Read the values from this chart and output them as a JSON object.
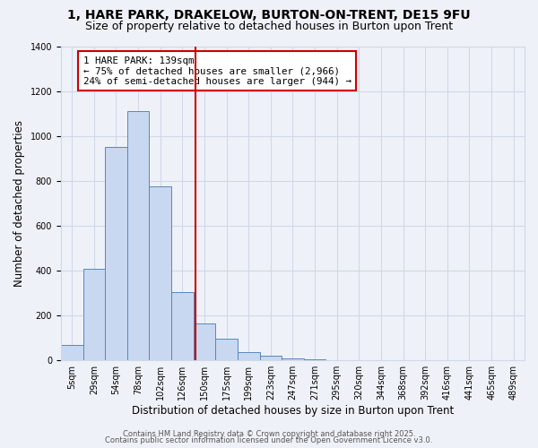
{
  "title": "1, HARE PARK, DRAKELOW, BURTON-ON-TRENT, DE15 9FU",
  "subtitle": "Size of property relative to detached houses in Burton upon Trent",
  "xlabel": "Distribution of detached houses by size in Burton upon Trent",
  "ylabel": "Number of detached properties",
  "bin_labels": [
    "5sqm",
    "29sqm",
    "54sqm",
    "78sqm",
    "102sqm",
    "126sqm",
    "150sqm",
    "175sqm",
    "199sqm",
    "223sqm",
    "247sqm",
    "271sqm",
    "295sqm",
    "320sqm",
    "344sqm",
    "368sqm",
    "392sqm",
    "416sqm",
    "441sqm",
    "465sqm",
    "489sqm"
  ],
  "bar_heights": [
    68,
    410,
    950,
    1110,
    775,
    305,
    165,
    95,
    35,
    20,
    10,
    5,
    2,
    0,
    0,
    0,
    0,
    0,
    0,
    0,
    0
  ],
  "bar_color": "#c8d8f0",
  "bar_edge_color": "#5588bb",
  "vline_index": 5.583,
  "vline_color": "#cc0000",
  "annotation_text": "1 HARE PARK: 139sqm\n← 75% of detached houses are smaller (2,966)\n24% of semi-detached houses are larger (944) →",
  "annotation_box_color": "#ffffff",
  "annotation_box_edge": "#cc0000",
  "ylim": [
    0,
    1400
  ],
  "yticks": [
    0,
    200,
    400,
    600,
    800,
    1000,
    1200,
    1400
  ],
  "grid_color": "#d0d8e8",
  "background_color": "#eef2f8",
  "footer1": "Contains HM Land Registry data © Crown copyright and database right 2025.",
  "footer2": "Contains public sector information licensed under the Open Government Licence v3.0.",
  "title_fontsize": 10,
  "subtitle_fontsize": 9,
  "axis_label_fontsize": 8.5,
  "tick_fontsize": 7,
  "annotation_fontsize": 7.8,
  "footer_fontsize": 6
}
